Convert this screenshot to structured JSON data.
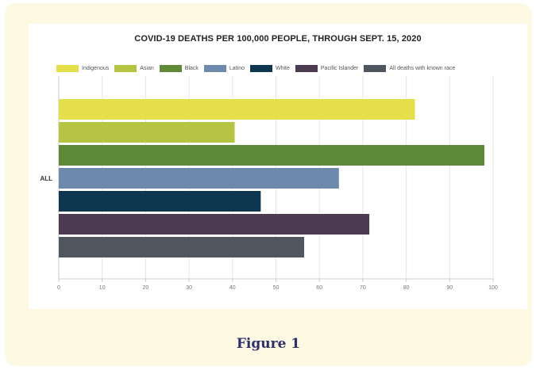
{
  "caption": "Figure 1",
  "chart_data": {
    "type": "bar",
    "orientation": "horizontal",
    "title": "COVID-19 DEATHS PER 100,000 PEOPLE, THROUGH SEPT. 15, 2020",
    "categories": [
      "ALL"
    ],
    "series": [
      {
        "name": "Indigenous",
        "color": "#e5e04a",
        "values": [
          82
        ]
      },
      {
        "name": "Asian",
        "color": "#b6c443",
        "values": [
          40.5
        ]
      },
      {
        "name": "Black",
        "color": "#5e8a37",
        "values": [
          98
        ]
      },
      {
        "name": "Latino",
        "color": "#6d8aad",
        "values": [
          64.5
        ]
      },
      {
        "name": "White",
        "color": "#0f3651",
        "values": [
          46.5
        ]
      },
      {
        "name": "Pacific Islander",
        "color": "#4d3b52",
        "values": [
          71.5
        ]
      },
      {
        "name": "All deaths with known race",
        "color": "#505660",
        "values": [
          56.5
        ]
      }
    ],
    "x_ticks": [
      "0",
      "10",
      "20",
      "30",
      "40",
      "50",
      "60",
      "70",
      "80",
      "90",
      "100"
    ],
    "xlim": [
      0,
      100
    ],
    "grid": true,
    "legend_position": "top"
  }
}
